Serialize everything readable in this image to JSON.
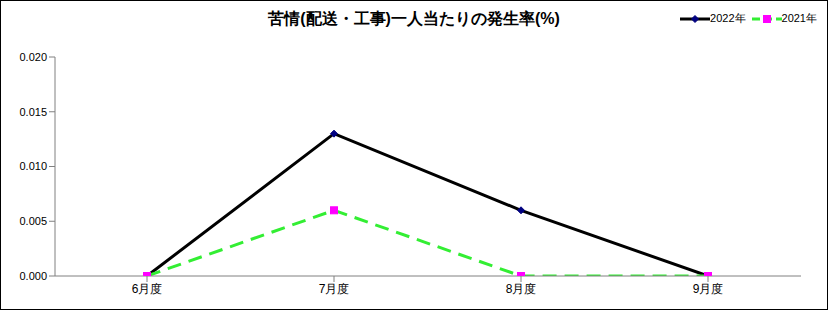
{
  "chart_data": {
    "type": "line",
    "title": "苦情(配送・工事)一人当たりの発生率(%)",
    "categories": [
      "6月度",
      "7月度",
      "8月度",
      "9月度"
    ],
    "series": [
      {
        "name": "2022年",
        "color": "#000000",
        "marker": "diamond",
        "line_style": "solid",
        "values": [
          0,
          0.013,
          0.006,
          0
        ]
      },
      {
        "name": "2021年",
        "color": "#33ee33",
        "marker": "square",
        "line_style": "dashed",
        "values": [
          0,
          0.006,
          0,
          0
        ]
      }
    ],
    "ylim": [
      0,
      0.02
    ],
    "yticks": [
      {
        "value": 0,
        "label": "0.000"
      },
      0.005,
      {
        "value": 0.01,
        "label": "0.010"
      },
      0.015,
      {
        "value": 0.02,
        "label": "0.020"
      }
    ],
    "grid": false,
    "legend": "top-right"
  }
}
